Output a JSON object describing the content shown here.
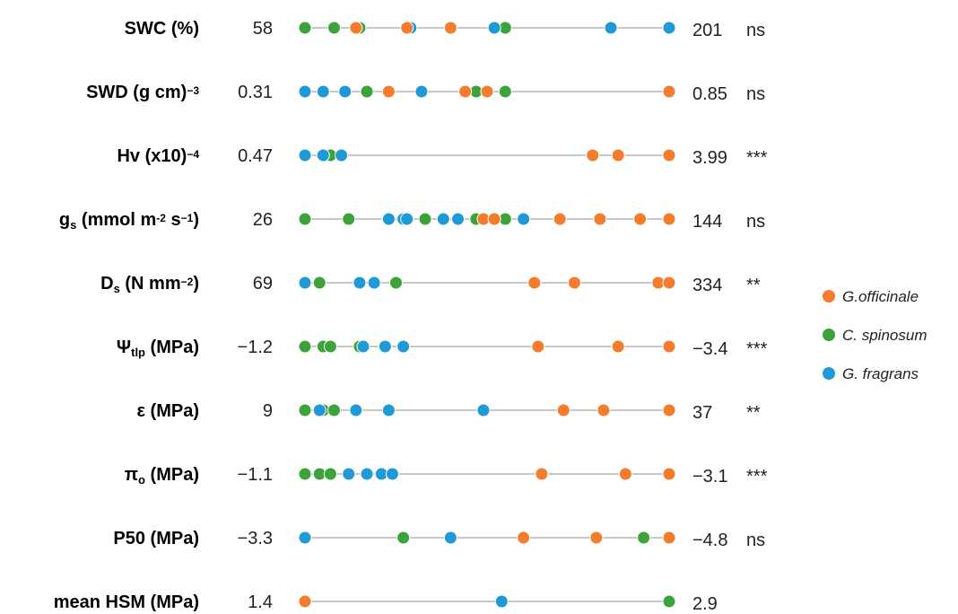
{
  "chart_data": {
    "type": "scatter",
    "legend_position": "right",
    "colors": {
      "G.officinale": "#f47c2c",
      "C. spinosum": "#3ca33a",
      "G. fragrans": "#1f9ad6",
      "line": "#c8c8c8"
    },
    "series": [
      {
        "name": "G.officinale"
      },
      {
        "name": "C. spinosum"
      },
      {
        "name": "G. fragrans"
      }
    ],
    "rows": [
      {
        "label": {
          "main": "SWC (%)"
        },
        "min": "58",
        "max": "201",
        "sig": "ns",
        "points": {
          "G.officinale": [
            0.14,
            0.28,
            0.4
          ],
          "C. spinosum": [
            0.0,
            0.08,
            0.15,
            0.55
          ],
          "G. fragrans": [
            0.29,
            0.52,
            0.84,
            1.0
          ]
        }
      },
      {
        "label": {
          "main": "SWD (g cm",
          "sup": "−3",
          "tail": ")"
        },
        "min": "0.31",
        "max": "0.85",
        "sig": "ns",
        "points": {
          "G.officinale": [
            0.23,
            0.44,
            0.5,
            1.0
          ],
          "C. spinosum": [
            0.17,
            0.47,
            0.55
          ],
          "G. fragrans": [
            0.0,
            0.05,
            0.11,
            0.32
          ]
        }
      },
      {
        "label": {
          "main": "Hv (x10",
          "sup": "−4",
          "tail": ")"
        },
        "min": "0.47",
        "max": "3.99",
        "sig": "***",
        "points": {
          "G.officinale": [
            0.79,
            0.86,
            1.0
          ],
          "C. spinosum": [
            0.07
          ],
          "G. fragrans": [
            0.0,
            0.05,
            0.1
          ]
        }
      },
      {
        "label": {
          "main": "g",
          "sub": "s",
          "tail": " (mmol m",
          "sup": "-2",
          "tail2": " s",
          "sup2": "−1",
          "tail3": ")"
        },
        "min": "26",
        "max": "144",
        "sig": "ns",
        "points": {
          "G.officinale": [
            0.49,
            0.52,
            0.7,
            0.81,
            0.92,
            1.0
          ],
          "C. spinosum": [
            0.0,
            0.12,
            0.33,
            0.47,
            0.55
          ],
          "G. fragrans": [
            0.23,
            0.27,
            0.28,
            0.38,
            0.42,
            0.6
          ]
        }
      },
      {
        "label": {
          "main": "D",
          "sub": "s",
          "tail": " (N mm",
          "sup": "−2",
          "tail2": ")"
        },
        "min": "69",
        "max": "334",
        "sig": "**",
        "points": {
          "G.officinale": [
            0.63,
            0.74,
            0.97,
            1.0
          ],
          "C. spinosum": [
            0.04,
            0.25
          ],
          "G. fragrans": [
            0.0,
            0.15,
            0.19
          ]
        }
      },
      {
        "label": {
          "main": "Ψ",
          "sub": "tlp",
          "tail": " (MPa)"
        },
        "min": "−1.2",
        "max": "−3.4",
        "sig": "***",
        "points": {
          "G.officinale": [
            0.64,
            0.86,
            1.0
          ],
          "C. spinosum": [
            0.0,
            0.05,
            0.07,
            0.15
          ],
          "G. fragrans": [
            0.16,
            0.22,
            0.27
          ]
        }
      },
      {
        "label": {
          "main": "ε (MPa)"
        },
        "min": "9",
        "max": "37",
        "sig": "**",
        "points": {
          "G.officinale": [
            0.71,
            0.82,
            1.0
          ],
          "C. spinosum": [
            0.0,
            0.05,
            0.08
          ],
          "G. fragrans": [
            0.04,
            0.14,
            0.23,
            0.49
          ]
        }
      },
      {
        "label": {
          "main": "π",
          "sub": "o",
          "tail": " (MPa)"
        },
        "min": "−1.1",
        "max": "−3.1",
        "sig": "***",
        "points": {
          "G.officinale": [
            0.65,
            0.88,
            1.0
          ],
          "C. spinosum": [
            0.0,
            0.04,
            0.07
          ],
          "G. fragrans": [
            0.12,
            0.17,
            0.21,
            0.24
          ]
        }
      },
      {
        "label": {
          "main": "P50 (MPa)"
        },
        "min": "−3.3",
        "max": "−4.8",
        "sig": "ns",
        "points": {
          "G.officinale": [
            0.6,
            0.8,
            1.0
          ],
          "C. spinosum": [
            0.27,
            0.6,
            0.93
          ],
          "G. fragrans": [
            0.0,
            0.4,
            0.8
          ]
        }
      },
      {
        "label": {
          "main": "mean HSM (MPa)"
        },
        "min": "1.4",
        "max": "2.9",
        "sig": "",
        "points": {
          "G.officinale": [
            0.0
          ],
          "C. spinosum": [
            1.0
          ],
          "G. fragrans": [
            0.54
          ]
        }
      }
    ]
  }
}
